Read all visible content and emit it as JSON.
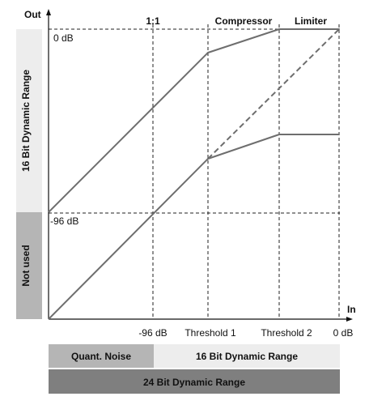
{
  "axes": {
    "y_label": "Out",
    "x_label": "In"
  },
  "top_labels": {
    "ratio": "1:1",
    "compressor": "Compressor",
    "limiter": "Limiter"
  },
  "level_labels": {
    "zero_db": "0 dB",
    "minus96_db": "-96 dB"
  },
  "x_ticks": [
    "-96 dB",
    "Threshold 1",
    "Threshold 2",
    "0 dB"
  ],
  "side_bands": {
    "upper": "16 Bit Dynamic Range",
    "lower": "Not used"
  },
  "bottom_bands": {
    "quant_noise": "Quant. Noise",
    "sixteen_bit": "16 Bit Dynamic Range",
    "twentyfour_bit": "24 Bit Dynamic Range"
  },
  "colors": {
    "curve": "#6e6e6e",
    "band_light": "#ededed",
    "band_mid": "#b5b5b5",
    "band_dark": "#7f7f7f"
  }
}
